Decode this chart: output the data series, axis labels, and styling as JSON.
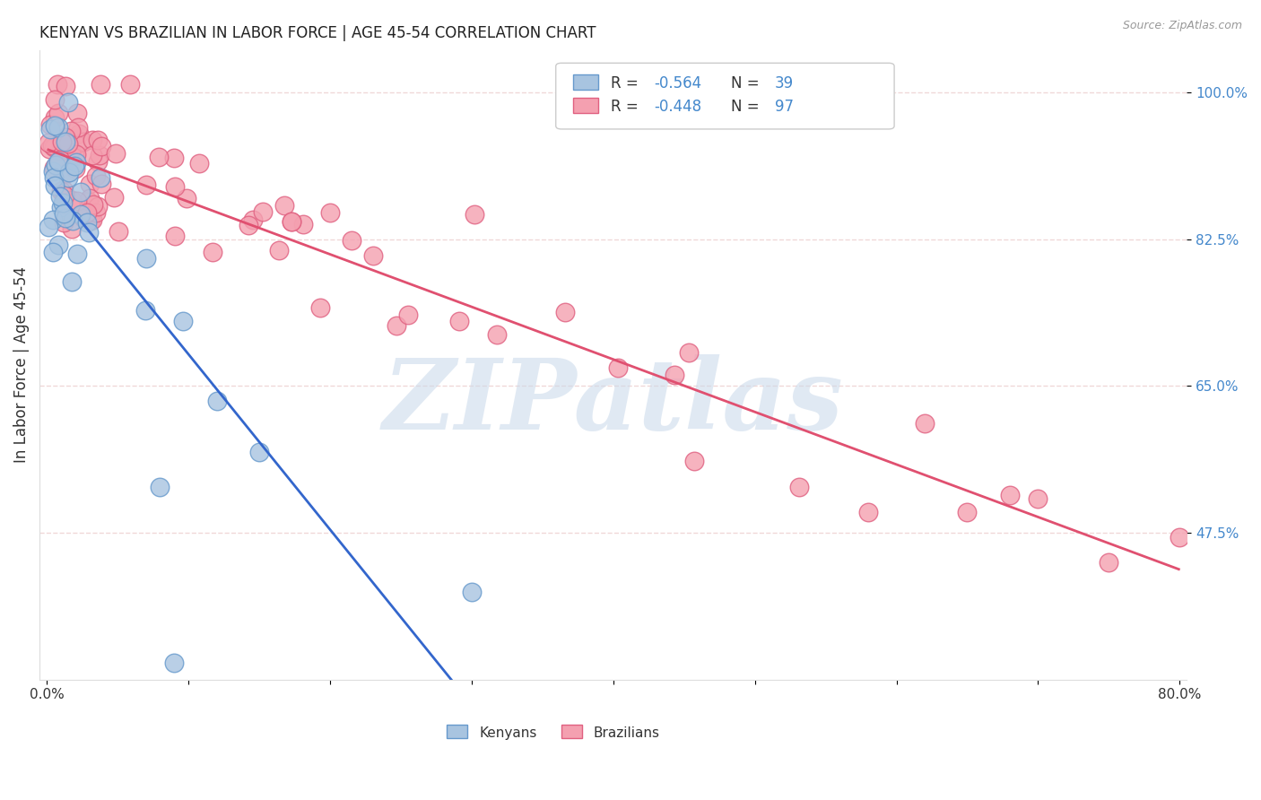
{
  "title": "KENYAN VS BRAZILIAN IN LABOR FORCE | AGE 45-54 CORRELATION CHART",
  "source": "Source: ZipAtlas.com",
  "ylabel": "In Labor Force | Age 45-54",
  "xlabel": "",
  "xlim": [
    -0.005,
    0.805
  ],
  "ylim": [
    0.3,
    1.05
  ],
  "yticks": [
    0.475,
    0.65,
    0.825,
    1.0
  ],
  "yticklabels": [
    "47.5%",
    "65.0%",
    "82.5%",
    "100.0%"
  ],
  "kenyan_color": "#a8c4e0",
  "kenyan_edge": "#6699cc",
  "brazilian_color": "#f4a0b0",
  "brazilian_edge": "#e06080",
  "kenyan_R": -0.564,
  "kenyan_N": 39,
  "brazilian_R": -0.448,
  "brazilian_N": 97,
  "kenyan_line_color": "#3366cc",
  "brazilian_line_color": "#e05070",
  "regression_ext_color": "#b8b8b8",
  "background_color": "#ffffff",
  "grid_color": "#f0d8d8",
  "watermark": "ZIPatlas",
  "watermark_color": "#c8d8ea"
}
